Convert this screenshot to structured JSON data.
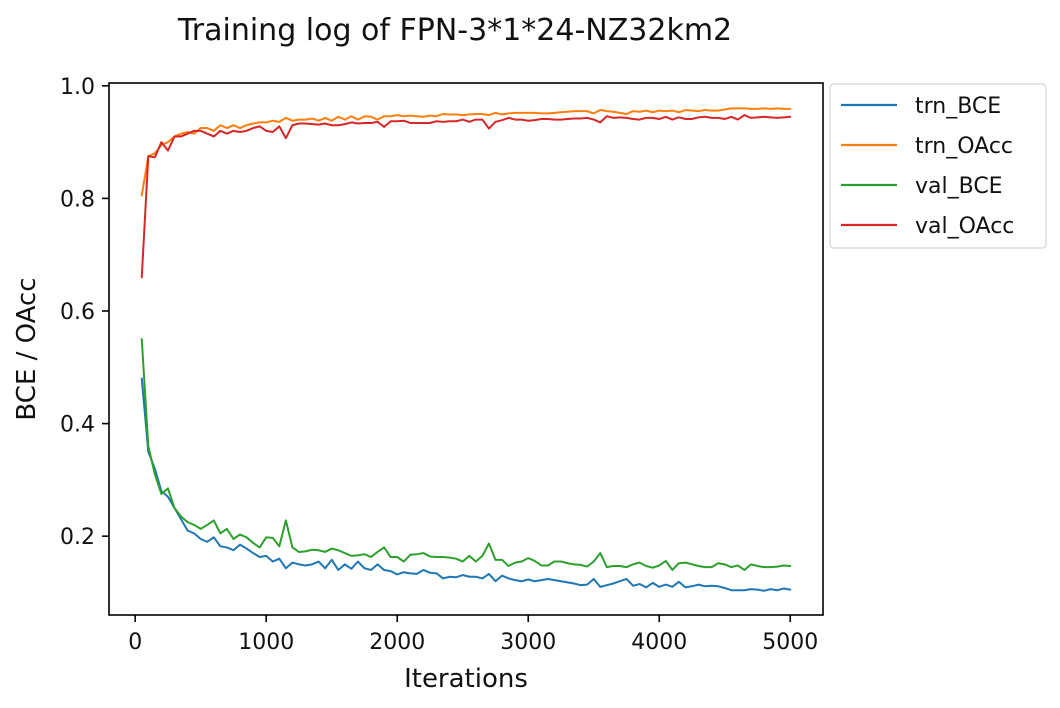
{
  "chart_data": {
    "type": "line",
    "title": "Training log of FPN-3*1*24-NZ32km2",
    "xlabel": "Iterations",
    "ylabel": "BCE / OAcc",
    "xlim": [
      -200,
      5250
    ],
    "ylim": [
      0.06,
      1.005
    ],
    "xticks": [
      0,
      1000,
      2000,
      3000,
      4000,
      5000
    ],
    "xtick_labels": [
      "0",
      "1000",
      "2000",
      "3000",
      "4000",
      "5000"
    ],
    "yticks": [
      0.2,
      0.4,
      0.6,
      0.8,
      1.0
    ],
    "ytick_labels": [
      "0.2",
      "0.4",
      "0.6",
      "0.8",
      "1.0"
    ],
    "grid": false,
    "legend": "outside-top-right",
    "x": [
      50,
      100,
      150,
      200,
      250,
      300,
      350,
      400,
      450,
      500,
      550,
      600,
      650,
      700,
      750,
      800,
      850,
      900,
      950,
      1000,
      1050,
      1100,
      1150,
      1200,
      1250,
      1300,
      1350,
      1400,
      1450,
      1500,
      1550,
      1600,
      1650,
      1700,
      1750,
      1800,
      1850,
      1900,
      1950,
      2000,
      2050,
      2100,
      2150,
      2200,
      2250,
      2300,
      2350,
      2400,
      2450,
      2500,
      2550,
      2600,
      2650,
      2700,
      2750,
      2800,
      2850,
      2900,
      2950,
      3000,
      3050,
      3100,
      3150,
      3200,
      3250,
      3300,
      3350,
      3400,
      3450,
      3500,
      3550,
      3600,
      3650,
      3700,
      3750,
      3800,
      3850,
      3900,
      3950,
      4000,
      4050,
      4100,
      4150,
      4200,
      4250,
      4300,
      4350,
      4400,
      4450,
      4500,
      4550,
      4600,
      4650,
      4700,
      4750,
      4800,
      4850,
      4900,
      4950,
      5000
    ],
    "series": [
      {
        "name": "trn_BCE",
        "color": "#1f77b4",
        "values": [
          0.48,
          0.35,
          0.32,
          0.28,
          0.27,
          0.25,
          0.23,
          0.21,
          0.205,
          0.195,
          0.19,
          0.198,
          0.182,
          0.18,
          0.175,
          0.185,
          0.178,
          0.17,
          0.163,
          0.165,
          0.155,
          0.16,
          0.143,
          0.153,
          0.15,
          0.148,
          0.15,
          0.155,
          0.143,
          0.158,
          0.14,
          0.15,
          0.142,
          0.155,
          0.143,
          0.14,
          0.15,
          0.14,
          0.138,
          0.132,
          0.136,
          0.134,
          0.133,
          0.14,
          0.135,
          0.134,
          0.125,
          0.128,
          0.127,
          0.131,
          0.128,
          0.128,
          0.125,
          0.133,
          0.12,
          0.13,
          0.125,
          0.122,
          0.12,
          0.123,
          0.12,
          0.122,
          0.124,
          0.122,
          0.12,
          0.118,
          0.116,
          0.113,
          0.114,
          0.124,
          0.11,
          0.113,
          0.116,
          0.12,
          0.124,
          0.112,
          0.115,
          0.109,
          0.117,
          0.11,
          0.114,
          0.11,
          0.119,
          0.109,
          0.111,
          0.114,
          0.111,
          0.112,
          0.111,
          0.108,
          0.104,
          0.104,
          0.104,
          0.106,
          0.105,
          0.103,
          0.106,
          0.104,
          0.107,
          0.105
        ]
      },
      {
        "name": "trn_OAcc",
        "color": "#ff7f0e",
        "values": [
          0.805,
          0.875,
          0.88,
          0.895,
          0.9,
          0.91,
          0.915,
          0.918,
          0.915,
          0.925,
          0.925,
          0.92,
          0.93,
          0.925,
          0.93,
          0.925,
          0.93,
          0.933,
          0.935,
          0.935,
          0.938,
          0.936,
          0.943,
          0.938,
          0.94,
          0.94,
          0.942,
          0.938,
          0.943,
          0.938,
          0.945,
          0.94,
          0.946,
          0.94,
          0.946,
          0.945,
          0.94,
          0.946,
          0.946,
          0.948,
          0.946,
          0.947,
          0.946,
          0.945,
          0.947,
          0.946,
          0.95,
          0.949,
          0.949,
          0.948,
          0.949,
          0.95,
          0.95,
          0.948,
          0.952,
          0.949,
          0.951,
          0.952,
          0.952,
          0.952,
          0.952,
          0.951,
          0.951,
          0.952,
          0.953,
          0.954,
          0.955,
          0.955,
          0.955,
          0.951,
          0.957,
          0.955,
          0.954,
          0.952,
          0.95,
          0.955,
          0.954,
          0.956,
          0.953,
          0.956,
          0.955,
          0.956,
          0.953,
          0.957,
          0.956,
          0.955,
          0.957,
          0.956,
          0.956,
          0.958,
          0.96,
          0.96,
          0.96,
          0.959,
          0.959,
          0.96,
          0.959,
          0.96,
          0.959,
          0.959
        ]
      },
      {
        "name": "val_BCE",
        "color": "#2ca02c",
        "values": [
          0.55,
          0.36,
          0.31,
          0.275,
          0.285,
          0.25,
          0.235,
          0.225,
          0.22,
          0.213,
          0.22,
          0.228,
          0.205,
          0.213,
          0.195,
          0.203,
          0.198,
          0.188,
          0.18,
          0.198,
          0.197,
          0.182,
          0.228,
          0.18,
          0.172,
          0.173,
          0.176,
          0.175,
          0.172,
          0.178,
          0.175,
          0.17,
          0.165,
          0.166,
          0.168,
          0.163,
          0.172,
          0.18,
          0.163,
          0.163,
          0.155,
          0.167,
          0.168,
          0.17,
          0.164,
          0.163,
          0.163,
          0.162,
          0.16,
          0.155,
          0.165,
          0.155,
          0.165,
          0.187,
          0.158,
          0.158,
          0.147,
          0.153,
          0.155,
          0.161,
          0.156,
          0.148,
          0.148,
          0.155,
          0.155,
          0.152,
          0.15,
          0.149,
          0.146,
          0.155,
          0.17,
          0.145,
          0.147,
          0.147,
          0.145,
          0.15,
          0.153,
          0.147,
          0.144,
          0.148,
          0.156,
          0.14,
          0.152,
          0.153,
          0.15,
          0.147,
          0.145,
          0.145,
          0.152,
          0.15,
          0.145,
          0.148,
          0.14,
          0.15,
          0.147,
          0.145,
          0.145,
          0.146,
          0.148,
          0.147
        ]
      },
      {
        "name": "val_OAcc",
        "color": "#d62728",
        "values": [
          0.66,
          0.875,
          0.873,
          0.9,
          0.885,
          0.91,
          0.91,
          0.915,
          0.92,
          0.92,
          0.915,
          0.91,
          0.92,
          0.915,
          0.92,
          0.918,
          0.92,
          0.925,
          0.928,
          0.92,
          0.918,
          0.928,
          0.907,
          0.93,
          0.933,
          0.933,
          0.932,
          0.931,
          0.933,
          0.93,
          0.93,
          0.932,
          0.935,
          0.933,
          0.934,
          0.934,
          0.936,
          0.927,
          0.937,
          0.937,
          0.938,
          0.934,
          0.934,
          0.934,
          0.934,
          0.937,
          0.936,
          0.937,
          0.937,
          0.94,
          0.936,
          0.94,
          0.94,
          0.924,
          0.936,
          0.939,
          0.943,
          0.94,
          0.94,
          0.938,
          0.939,
          0.941,
          0.941,
          0.94,
          0.94,
          0.941,
          0.942,
          0.942,
          0.943,
          0.94,
          0.935,
          0.946,
          0.943,
          0.944,
          0.943,
          0.941,
          0.94,
          0.943,
          0.943,
          0.941,
          0.945,
          0.94,
          0.944,
          0.941,
          0.941,
          0.944,
          0.945,
          0.943,
          0.943,
          0.941,
          0.945,
          0.94,
          0.948,
          0.943,
          0.944,
          0.945,
          0.944,
          0.943,
          0.944,
          0.945
        ]
      }
    ]
  }
}
